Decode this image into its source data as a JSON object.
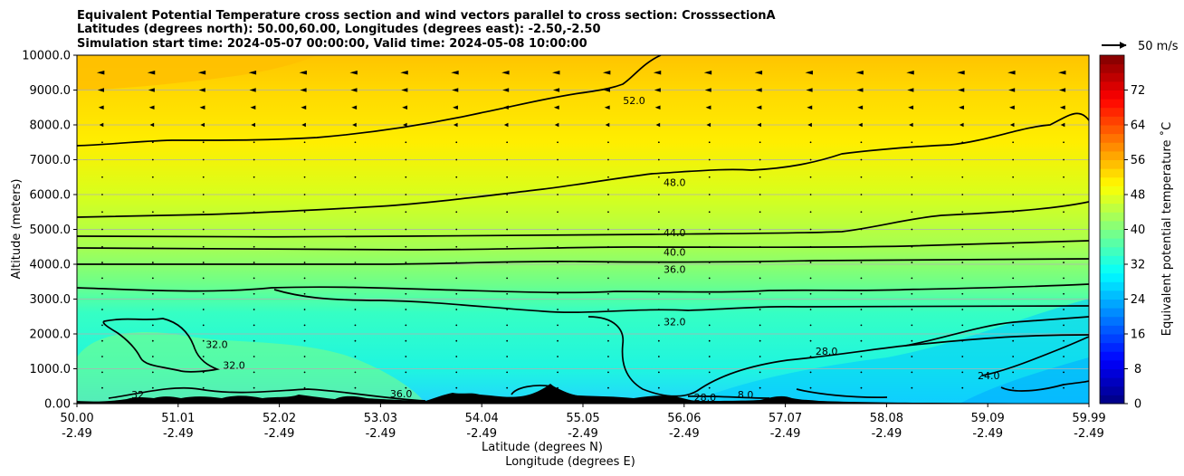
{
  "chart_data": {
    "type": "contour",
    "title_lines": [
      "Equivalent Potential Temperature cross section and wind vectors parallel to cross section: CrosssectionA",
      "Latitudes (degrees north): 50.00,60.00, Longitudes (degrees east): -2.50,-2.50",
      "Simulation start time: 2024-05-07 00:00:00, Valid time: 2024-05-08 10:00:00"
    ],
    "ylabel": "Altitude (meters)",
    "xlabel_lines": [
      "Latitude (degrees N)",
      "Longitude (degrees E)"
    ],
    "ylim": [
      0,
      10000
    ],
    "y_ticks": [
      "0.00",
      "1000.0",
      "2000.0",
      "3000.0",
      "4000.0",
      "5000.0",
      "6000.0",
      "7000.0",
      "8000.0",
      "9000.0",
      "10000.0"
    ],
    "x_lat_ticks": [
      "50.00",
      "51.01",
      "52.02",
      "53.03",
      "54.04",
      "55.05",
      "56.06",
      "57.07",
      "58.08",
      "59.09",
      "59.99"
    ],
    "x_lon_ticks": [
      "-2.49",
      "-2.49",
      "-2.49",
      "-2.49",
      "-2.49",
      "-2.49",
      "-2.49",
      "-2.49",
      "-2.49",
      "-2.49",
      "-2.49"
    ],
    "grid": "horizontal",
    "colorbar": {
      "label": "Equivalent potential temperature ˚C",
      "range": [
        0,
        80
      ],
      "step": 2,
      "ticks": [
        "0",
        "8",
        "16",
        "24",
        "32",
        "40",
        "48",
        "56",
        "64",
        "72"
      ]
    },
    "quiver_key": "50 m/s",
    "contour_labels": [
      {
        "text": "52.0",
        "lat": 55.5,
        "alt": 8600
      },
      {
        "text": "48.0",
        "lat": 55.9,
        "alt": 6250
      },
      {
        "text": "44.0",
        "lat": 55.9,
        "alt": 4800
      },
      {
        "text": "40.0",
        "lat": 55.9,
        "alt": 4250
      },
      {
        "text": "36.0",
        "lat": 55.9,
        "alt": 3750
      },
      {
        "text": "32.0",
        "lat": 55.9,
        "alt": 2250
      },
      {
        "text": "32.0",
        "lat": 51.38,
        "alt": 1600
      },
      {
        "text": "32.0",
        "lat": 51.55,
        "alt": 1000
      },
      {
        "text": "32",
        "lat": 50.6,
        "alt": 150
      },
      {
        "text": "36.0",
        "lat": 53.2,
        "alt": 180
      },
      {
        "text": "28.0",
        "lat": 57.4,
        "alt": 1400
      },
      {
        "text": "28.0",
        "lat": 56.2,
        "alt": 80
      },
      {
        "text": "8.0",
        "lat": 56.6,
        "alt": 150
      },
      {
        "text": "24.0",
        "lat": 59.0,
        "alt": 700
      }
    ]
  }
}
